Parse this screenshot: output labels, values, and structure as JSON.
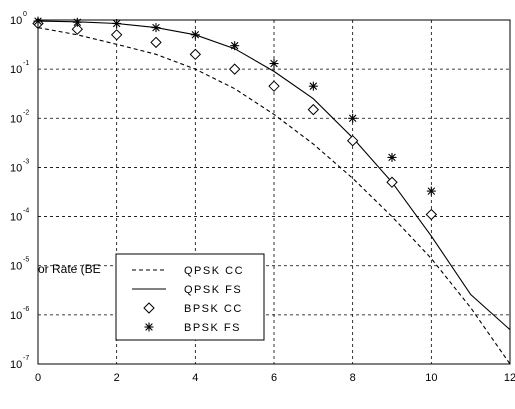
{
  "chart_data": {
    "type": "line",
    "title": "",
    "xlabel": "",
    "ylabel": "or Rate (BE",
    "x_ticks": [
      "0",
      "2",
      "4",
      "6",
      "8",
      "10",
      "12"
    ],
    "xlim": [
      0,
      12
    ],
    "ylim": [
      1e-07,
      1
    ],
    "y_scale": "log",
    "y_ticks": [
      {
        "base": "10",
        "exp": "0"
      },
      {
        "base": "10",
        "exp": "-1"
      },
      {
        "base": "10",
        "exp": "-2"
      },
      {
        "base": "10",
        "exp": "-3"
      },
      {
        "base": "10",
        "exp": "-4"
      },
      {
        "base": "10",
        "exp": "-5"
      },
      {
        "base": "10",
        "exp": "-6"
      },
      {
        "base": "10",
        "exp": "-7"
      }
    ],
    "grid": true,
    "legend_position": "lower-left",
    "series": [
      {
        "name": "QPSK CC",
        "style": "dashed-line",
        "x": [
          0,
          1,
          2,
          3,
          4,
          5,
          6,
          7,
          8,
          9,
          10,
          11,
          12
        ],
        "y": [
          0.7,
          0.5,
          0.32,
          0.2,
          0.1,
          0.04,
          0.012,
          0.003,
          0.0006,
          0.0001,
          1.4e-05,
          1.4e-06,
          1e-07
        ]
      },
      {
        "name": "QPSK FS",
        "style": "solid-line",
        "x": [
          0,
          1,
          2,
          3,
          4,
          5,
          6,
          7,
          8,
          9,
          10,
          11,
          12
        ],
        "y": [
          0.95,
          0.92,
          0.85,
          0.7,
          0.5,
          0.26,
          0.09,
          0.025,
          0.004,
          0.0005,
          4e-05,
          2.6e-06,
          5e-07
        ]
      },
      {
        "name": "BPSK CC",
        "style": "diamond-markers",
        "x": [
          0,
          1,
          2,
          3,
          4,
          5,
          6,
          7,
          8,
          9,
          10
        ],
        "y": [
          0.85,
          0.65,
          0.5,
          0.35,
          0.2,
          0.1,
          0.045,
          0.015,
          0.0035,
          0.0005,
          0.00011
        ]
      },
      {
        "name": "BPSK FS",
        "style": "star-markers",
        "x": [
          0,
          1,
          2,
          3,
          4,
          5,
          6,
          7,
          8,
          9,
          10
        ],
        "y": [
          0.95,
          0.9,
          0.85,
          0.7,
          0.5,
          0.3,
          0.13,
          0.045,
          0.01,
          0.0016,
          0.00033
        ]
      }
    ]
  }
}
